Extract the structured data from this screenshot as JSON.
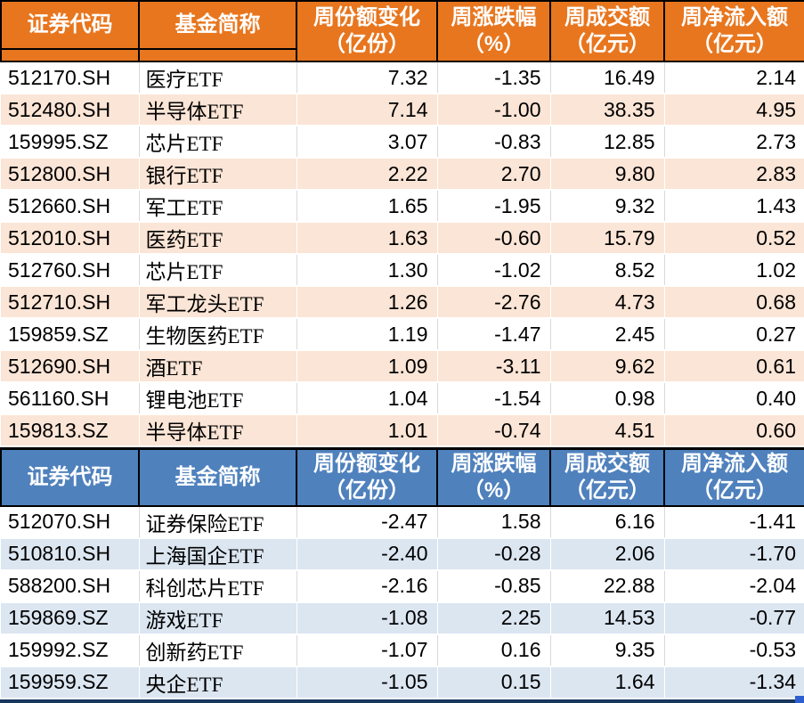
{
  "colors": {
    "orange_header": "#E8761E",
    "peach_row": "#FBE5D6",
    "blue_header": "#4F81BD",
    "light_blue_row": "#DCE6F1",
    "grid_line": "#D9D9D9",
    "header_text": "#FFFFFF",
    "body_text": "#000000",
    "bottom_bar": "#17375D",
    "corner_square": "#2E5FD0"
  },
  "chart_data": [
    {
      "type": "table",
      "theme": "orange",
      "columns": [
        {
          "label": "证券代码",
          "unit": ""
        },
        {
          "label": "基金简称",
          "unit": ""
        },
        {
          "label": "周份额变化",
          "unit": "（亿份）"
        },
        {
          "label": "周涨跌幅",
          "unit": "（%）"
        },
        {
          "label": "周成交额",
          "unit": "（亿元）"
        },
        {
          "label": "周净流入额",
          "unit": "（亿元）"
        }
      ],
      "rows": [
        [
          "512170.SH",
          "医疗ETF",
          "7.32",
          "-1.35",
          "16.49",
          "2.14"
        ],
        [
          "512480.SH",
          "半导体ETF",
          "7.14",
          "-1.00",
          "38.35",
          "4.95"
        ],
        [
          "159995.SZ",
          "芯片ETF",
          "3.07",
          "-0.83",
          "12.85",
          "2.73"
        ],
        [
          "512800.SH",
          "银行ETF",
          "2.22",
          "2.70",
          "9.80",
          "2.83"
        ],
        [
          "512660.SH",
          "军工ETF",
          "1.65",
          "-1.95",
          "9.32",
          "1.43"
        ],
        [
          "512010.SH",
          "医药ETF",
          "1.63",
          "-0.60",
          "15.79",
          "0.52"
        ],
        [
          "512760.SH",
          "芯片ETF",
          "1.30",
          "-1.02",
          "8.52",
          "1.02"
        ],
        [
          "512710.SH",
          "军工龙头ETF",
          "1.26",
          "-2.76",
          "4.73",
          "0.68"
        ],
        [
          "159859.SZ",
          "生物医药ETF",
          "1.19",
          "-1.47",
          "2.45",
          "0.27"
        ],
        [
          "512690.SH",
          "酒ETF",
          "1.09",
          "-3.11",
          "9.62",
          "0.61"
        ],
        [
          "561160.SH",
          "锂电池ETF",
          "1.04",
          "-1.54",
          "0.98",
          "0.40"
        ],
        [
          "159813.SZ",
          "半导体ETF",
          "1.01",
          "-0.74",
          "4.51",
          "0.60"
        ]
      ]
    },
    {
      "type": "table",
      "theme": "blue",
      "columns": [
        {
          "label": "证券代码",
          "unit": ""
        },
        {
          "label": "基金简称",
          "unit": ""
        },
        {
          "label": "周份额变化",
          "unit": "（亿份）"
        },
        {
          "label": "周涨跌幅",
          "unit": "（%）"
        },
        {
          "label": "周成交额",
          "unit": "（亿元）"
        },
        {
          "label": "周净流入额",
          "unit": "（亿元）"
        }
      ],
      "rows": [
        [
          "512070.SH",
          "证券保险ETF",
          "-2.47",
          "1.58",
          "6.16",
          "-1.41"
        ],
        [
          "510810.SH",
          "上海国企ETF",
          "-2.40",
          "-0.28",
          "2.06",
          "-1.70"
        ],
        [
          "588200.SH",
          "科创芯片ETF",
          "-2.16",
          "-0.85",
          "22.88",
          "-2.04"
        ],
        [
          "159869.SZ",
          "游戏ETF",
          "-1.08",
          "2.25",
          "14.53",
          "-0.77"
        ],
        [
          "159992.SZ",
          "创新药ETF",
          "-1.07",
          "0.16",
          "9.35",
          "-0.53"
        ],
        [
          "159959.SZ",
          "央企ETF",
          "-1.05",
          "0.15",
          "1.64",
          "-1.34"
        ]
      ]
    }
  ]
}
